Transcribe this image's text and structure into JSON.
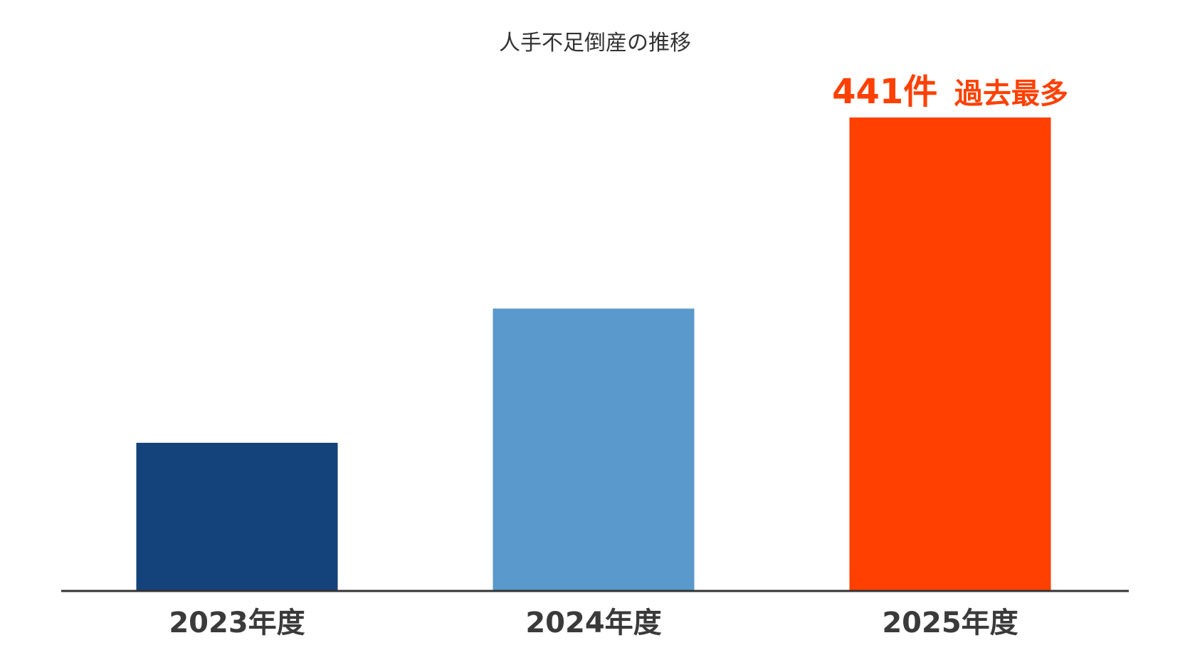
{
  "chart_data": {
    "type": "bar",
    "title": "人手不足倒産の推移",
    "categories": [
      "2023年度",
      "2024年度",
      "2025年度"
    ],
    "values": [
      138,
      263,
      441
    ],
    "colors": [
      "#14427a",
      "#5a99cb",
      "#ff4000"
    ],
    "axis_color": "#333333",
    "ylim": [
      0,
      441
    ],
    "grid": false,
    "y_axis_visible": false,
    "annotation": {
      "category": "2025年度",
      "value_text": "441件",
      "note_text": "過去最多",
      "color": "#ff4000"
    }
  }
}
